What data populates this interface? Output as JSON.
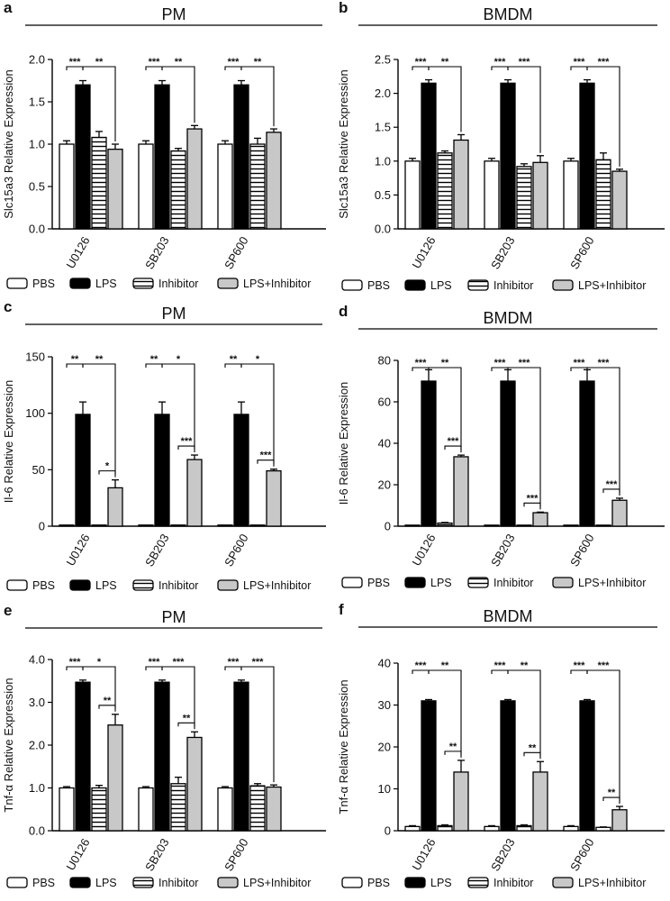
{
  "chart_data": [
    {
      "type": "bar",
      "id": "a",
      "panel_label": "a",
      "title": "PM",
      "ylabel": "Slc15a3 Relative Expression",
      "ylim": [
        0,
        2.0
      ],
      "yticks": [
        "0.0",
        "0.5",
        "1.0",
        "1.5",
        "2.0"
      ],
      "categories": [
        "U0126",
        "SB203",
        "SP600"
      ],
      "series": [
        {
          "name": "PBS",
          "values": [
            1.0,
            1.0,
            1.0
          ],
          "errors": [
            0.04,
            0.04,
            0.04
          ]
        },
        {
          "name": "LPS",
          "values": [
            1.7,
            1.7,
            1.7
          ],
          "errors": [
            0.05,
            0.05,
            0.05
          ]
        },
        {
          "name": "Inhibitor",
          "values": [
            1.08,
            0.92,
            1.0
          ],
          "errors": [
            0.07,
            0.03,
            0.07
          ]
        },
        {
          "name": "LPS+Inhibitor",
          "values": [
            0.94,
            1.18,
            1.14
          ],
          "errors": [
            0.06,
            0.04,
            0.04
          ]
        }
      ],
      "annotations": [
        {
          "group": 0,
          "from": 0,
          "to": 1,
          "label": "***"
        },
        {
          "group": 0,
          "from": 1,
          "to": 3,
          "label": "**"
        },
        {
          "group": 1,
          "from": 0,
          "to": 1,
          "label": "***"
        },
        {
          "group": 1,
          "from": 1,
          "to": 3,
          "label": "**"
        },
        {
          "group": 2,
          "from": 0,
          "to": 1,
          "label": "***"
        },
        {
          "group": 2,
          "from": 1,
          "to": 3,
          "label": "**"
        }
      ]
    },
    {
      "type": "bar",
      "id": "b",
      "panel_label": "b",
      "title": "BMDM",
      "ylabel": "Slc15a3 Relative Expression",
      "ylim": [
        0,
        2.5
      ],
      "yticks": [
        "0.0",
        "0.5",
        "1.0",
        "1.5",
        "2.0",
        "2.5"
      ],
      "categories": [
        "U0126",
        "SB203",
        "SP600"
      ],
      "series": [
        {
          "name": "PBS",
          "values": [
            1.0,
            1.0,
            1.0
          ],
          "errors": [
            0.04,
            0.04,
            0.04
          ]
        },
        {
          "name": "LPS",
          "values": [
            2.15,
            2.15,
            2.15
          ],
          "errors": [
            0.05,
            0.05,
            0.05
          ]
        },
        {
          "name": "Inhibitor",
          "values": [
            1.12,
            0.92,
            1.02
          ],
          "errors": [
            0.03,
            0.04,
            0.1
          ]
        },
        {
          "name": "LPS+Inhibitor",
          "values": [
            1.31,
            0.98,
            0.85
          ],
          "errors": [
            0.08,
            0.1,
            0.03
          ]
        }
      ],
      "annotations": [
        {
          "group": 0,
          "from": 0,
          "to": 1,
          "label": "***"
        },
        {
          "group": 0,
          "from": 1,
          "to": 3,
          "label": "**"
        },
        {
          "group": 1,
          "from": 0,
          "to": 1,
          "label": "***"
        },
        {
          "group": 1,
          "from": 1,
          "to": 3,
          "label": "***"
        },
        {
          "group": 2,
          "from": 0,
          "to": 1,
          "label": "***"
        },
        {
          "group": 2,
          "from": 1,
          "to": 3,
          "label": "***"
        }
      ]
    },
    {
      "type": "bar",
      "id": "c",
      "panel_label": "c",
      "title": "PM",
      "ylabel": "Il-6 Relative Expression",
      "ylim": [
        0,
        150
      ],
      "yticks": [
        "0",
        "50",
        "100",
        "150"
      ],
      "categories": [
        "U0126",
        "SB203",
        "SP600"
      ],
      "series": [
        {
          "name": "PBS",
          "values": [
            1,
            1,
            1
          ],
          "errors": [
            0,
            0,
            0
          ]
        },
        {
          "name": "LPS",
          "values": [
            99,
            99,
            99
          ],
          "errors": [
            11,
            11,
            11
          ]
        },
        {
          "name": "Inhibitor",
          "values": [
            1,
            1,
            1
          ],
          "errors": [
            0,
            0,
            0
          ]
        },
        {
          "name": "LPS+Inhibitor",
          "values": [
            34,
            59,
            49
          ],
          "errors": [
            7,
            4,
            1.5
          ]
        }
      ],
      "annotations": [
        {
          "group": 0,
          "from": 0,
          "to": 1,
          "label": "**"
        },
        {
          "group": 0,
          "from": 1,
          "to": 3,
          "label": "**"
        },
        {
          "group": 0,
          "from": 2,
          "to": 3,
          "label": "*"
        },
        {
          "group": 1,
          "from": 0,
          "to": 1,
          "label": "**"
        },
        {
          "group": 1,
          "from": 1,
          "to": 3,
          "label": "*"
        },
        {
          "group": 1,
          "from": 2,
          "to": 3,
          "label": "***"
        },
        {
          "group": 2,
          "from": 0,
          "to": 1,
          "label": "**"
        },
        {
          "group": 2,
          "from": 1,
          "to": 3,
          "label": "*"
        },
        {
          "group": 2,
          "from": 2,
          "to": 3,
          "label": "***"
        }
      ]
    },
    {
      "type": "bar",
      "id": "d",
      "panel_label": "d",
      "title": "BMDM",
      "ylabel": "Il-6 Relative Expression",
      "ylim": [
        0,
        80
      ],
      "yticks": [
        "0",
        "20",
        "40",
        "60",
        "80"
      ],
      "categories": [
        "U0126",
        "SB203",
        "SP600"
      ],
      "series": [
        {
          "name": "PBS",
          "values": [
            0.5,
            0.5,
            0.5
          ],
          "errors": [
            0,
            0,
            0
          ]
        },
        {
          "name": "LPS",
          "values": [
            70,
            70,
            70
          ],
          "errors": [
            5.5,
            5.5,
            5.5
          ]
        },
        {
          "name": "Inhibitor",
          "values": [
            1.5,
            0.5,
            0.5
          ],
          "errors": [
            0.3,
            0,
            0
          ]
        },
        {
          "name": "LPS+Inhibitor",
          "values": [
            33.5,
            6.5,
            12.5
          ],
          "errors": [
            0.8,
            0.3,
            1
          ]
        }
      ],
      "annotations": [
        {
          "group": 0,
          "from": 0,
          "to": 1,
          "label": "***"
        },
        {
          "group": 0,
          "from": 1,
          "to": 3,
          "label": "**"
        },
        {
          "group": 0,
          "from": 2,
          "to": 3,
          "label": "***"
        },
        {
          "group": 1,
          "from": 0,
          "to": 1,
          "label": "***"
        },
        {
          "group": 1,
          "from": 1,
          "to": 3,
          "label": "***"
        },
        {
          "group": 1,
          "from": 2,
          "to": 3,
          "label": "***"
        },
        {
          "group": 2,
          "from": 0,
          "to": 1,
          "label": "***"
        },
        {
          "group": 2,
          "from": 1,
          "to": 3,
          "label": "***"
        },
        {
          "group": 2,
          "from": 2,
          "to": 3,
          "label": "***"
        }
      ]
    },
    {
      "type": "bar",
      "id": "e",
      "panel_label": "e",
      "title": "PM",
      "ylabel": "Tnf-α Relative Expression",
      "ylim": [
        0,
        4.0
      ],
      "yticks": [
        "0.0",
        "1.0",
        "2.0",
        "3.0",
        "4.0"
      ],
      "categories": [
        "U0126",
        "SB203",
        "SP600"
      ],
      "series": [
        {
          "name": "PBS",
          "values": [
            1.0,
            1.0,
            1.0
          ],
          "errors": [
            0.03,
            0.03,
            0.03
          ]
        },
        {
          "name": "LPS",
          "values": [
            3.47,
            3.47,
            3.47
          ],
          "errors": [
            0.05,
            0.05,
            0.05
          ]
        },
        {
          "name": "Inhibitor",
          "values": [
            1.0,
            1.1,
            1.05
          ],
          "errors": [
            0.06,
            0.15,
            0.05
          ]
        },
        {
          "name": "LPS+Inhibitor",
          "values": [
            2.47,
            2.18,
            1.02
          ],
          "errors": [
            0.25,
            0.13,
            0.05
          ]
        }
      ],
      "annotations": [
        {
          "group": 0,
          "from": 0,
          "to": 1,
          "label": "***"
        },
        {
          "group": 0,
          "from": 1,
          "to": 3,
          "label": "*"
        },
        {
          "group": 0,
          "from": 2,
          "to": 3,
          "label": "**"
        },
        {
          "group": 1,
          "from": 0,
          "to": 1,
          "label": "***"
        },
        {
          "group": 1,
          "from": 1,
          "to": 3,
          "label": "***"
        },
        {
          "group": 1,
          "from": 2,
          "to": 3,
          "label": "**"
        },
        {
          "group": 2,
          "from": 0,
          "to": 1,
          "label": "***"
        },
        {
          "group": 2,
          "from": 1,
          "to": 3,
          "label": "***"
        }
      ]
    },
    {
      "type": "bar",
      "id": "f",
      "panel_label": "f",
      "title": "BMDM",
      "ylabel": "Tnf-α Relative Expression",
      "ylim": [
        0,
        40
      ],
      "yticks": [
        "0",
        "10",
        "20",
        "30",
        "40"
      ],
      "categories": [
        "U0126",
        "SB203",
        "SP600"
      ],
      "series": [
        {
          "name": "PBS",
          "values": [
            1,
            1,
            1
          ],
          "errors": [
            0.2,
            0.2,
            0.2
          ]
        },
        {
          "name": "LPS",
          "values": [
            31,
            31,
            31
          ],
          "errors": [
            0.3,
            0.3,
            0.3
          ]
        },
        {
          "name": "Inhibitor",
          "values": [
            1.2,
            1.2,
            0.8
          ],
          "errors": [
            0.2,
            0.2,
            0.1
          ]
        },
        {
          "name": "LPS+Inhibitor",
          "values": [
            14,
            14,
            5
          ],
          "errors": [
            2.8,
            2.5,
            0.8
          ]
        }
      ],
      "annotations": [
        {
          "group": 0,
          "from": 0,
          "to": 1,
          "label": "***"
        },
        {
          "group": 0,
          "from": 1,
          "to": 3,
          "label": "**"
        },
        {
          "group": 0,
          "from": 2,
          "to": 3,
          "label": "**"
        },
        {
          "group": 1,
          "from": 0,
          "to": 1,
          "label": "***"
        },
        {
          "group": 1,
          "from": 1,
          "to": 3,
          "label": "**"
        },
        {
          "group": 1,
          "from": 2,
          "to": 3,
          "label": "**"
        },
        {
          "group": 2,
          "from": 0,
          "to": 1,
          "label": "***"
        },
        {
          "group": 2,
          "from": 1,
          "to": 3,
          "label": "***"
        },
        {
          "group": 2,
          "from": 2,
          "to": 3,
          "label": "**"
        }
      ]
    }
  ],
  "legend": {
    "items": [
      {
        "name": "PBS",
        "style": "white"
      },
      {
        "name": "LPS",
        "style": "black"
      },
      {
        "name": "Inhibitor",
        "style": "striped"
      },
      {
        "name": "LPS+Inhibitor",
        "style": "gray"
      }
    ]
  },
  "colors": {
    "pbs": "#ffffff",
    "lps": "#000000",
    "inhibitor": "#ffffff",
    "lps_inhibitor": "#c8c8c8",
    "stroke": "#000000"
  }
}
